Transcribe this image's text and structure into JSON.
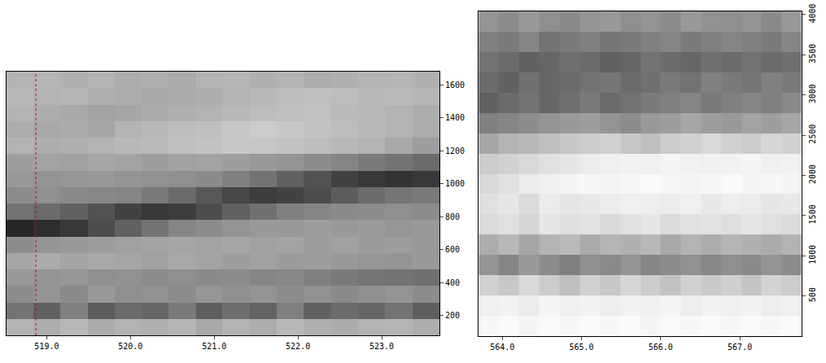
{
  "chart_data": [
    {
      "type": "heatmap",
      "x": [
        518.68,
        519.0,
        519.33,
        519.65,
        519.97,
        520.29,
        520.62,
        520.94,
        521.26,
        521.59,
        521.91,
        522.23,
        522.56,
        522.88,
        523.2,
        523.53
      ],
      "y": [
        130,
        230,
        330,
        430,
        530,
        630,
        730,
        830,
        930,
        1030,
        1130,
        1230,
        1330,
        1430,
        1530,
        1630
      ],
      "z": [
        [
          30,
          32,
          28,
          33,
          30,
          31,
          29,
          34,
          30,
          32,
          28,
          31,
          33,
          30,
          29,
          32
        ],
        [
          55,
          62,
          50,
          64,
          58,
          60,
          52,
          63,
          57,
          61,
          50,
          62,
          58,
          60,
          55,
          63
        ],
        [
          45,
          42,
          46,
          40,
          44,
          43,
          45,
          41,
          44,
          42,
          45,
          43,
          46,
          44,
          42,
          45
        ],
        [
          40,
          42,
          41,
          44,
          43,
          45,
          44,
          46,
          45,
          48,
          47,
          50,
          52,
          54,
          55,
          56
        ],
        [
          35,
          33,
          36,
          34,
          35,
          37,
          34,
          36,
          38,
          37,
          39,
          38,
          40,
          41,
          42,
          40
        ],
        [
          45,
          42,
          40,
          38,
          37,
          36,
          35,
          36,
          35,
          37,
          36,
          38,
          37,
          39,
          38,
          40
        ],
        [
          85,
          82,
          78,
          70,
          62,
          55,
          48,
          45,
          42,
          40,
          40,
          38,
          40,
          39,
          41,
          40
        ],
        [
          55,
          58,
          62,
          68,
          74,
          78,
          76,
          70,
          62,
          56,
          50,
          48,
          46,
          45,
          44,
          45
        ],
        [
          45,
          44,
          46,
          47,
          48,
          52,
          58,
          66,
          72,
          76,
          74,
          70,
          64,
          58,
          54,
          52
        ],
        [
          40,
          42,
          41,
          40,
          42,
          43,
          44,
          46,
          50,
          55,
          62,
          68,
          74,
          78,
          80,
          78
        ],
        [
          38,
          36,
          37,
          35,
          36,
          38,
          37,
          36,
          38,
          40,
          42,
          45,
          48,
          52,
          55,
          58
        ],
        [
          30,
          32,
          31,
          30,
          28,
          27,
          25,
          24,
          22,
          22,
          24,
          26,
          28,
          30,
          34,
          38
        ],
        [
          32,
          34,
          33,
          35,
          30,
          28,
          26,
          25,
          22,
          20,
          22,
          24,
          26,
          28,
          30,
          32
        ],
        [
          30,
          32,
          34,
          36,
          35,
          33,
          31,
          30,
          28,
          26,
          25,
          24,
          27,
          28,
          30,
          32
        ],
        [
          28,
          30,
          29,
          31,
          32,
          34,
          33,
          32,
          30,
          28,
          26,
          25,
          26,
          28,
          27,
          29
        ],
        [
          30,
          29,
          31,
          30,
          32,
          31,
          33,
          30,
          29,
          31,
          30,
          32,
          31,
          30,
          29,
          31
        ]
      ],
      "zlim": [
        0,
        100
      ],
      "xlim": [
        518.52,
        523.69
      ],
      "ylim": [
        80,
        1680
      ],
      "xticks": [
        {
          "value": 519,
          "label": "519.0"
        },
        {
          "value": 520,
          "label": "520.0"
        },
        {
          "value": 521,
          "label": "521.0"
        },
        {
          "value": 522,
          "label": "522.0"
        },
        {
          "value": 523,
          "label": "523.0"
        }
      ],
      "yticks": [
        200,
        400,
        600,
        800,
        1000,
        1200,
        1400,
        1600
      ],
      "vline": {
        "x": 518.87,
        "color": "#cc0000",
        "line_style": "dotted"
      },
      "grid": false
    },
    {
      "type": "heatmap",
      "x": [
        563.83,
        564.08,
        564.34,
        564.6,
        564.85,
        565.11,
        565.36,
        565.62,
        565.87,
        566.13,
        566.38,
        566.64,
        566.89,
        567.15,
        567.4,
        567.65
      ],
      "y": [
        126,
        379,
        631,
        884,
        1136,
        1389,
        1641,
        1894,
        2146,
        2399,
        2651,
        2904,
        3156,
        3409,
        3661,
        3914
      ],
      "z": [
        [
          3,
          2,
          4,
          2,
          3,
          2,
          3,
          2,
          4,
          2,
          3,
          2,
          3,
          2,
          3,
          2
        ],
        [
          6,
          5,
          8,
          4,
          6,
          5,
          7,
          5,
          6,
          4,
          7,
          5,
          6,
          5,
          7,
          6
        ],
        [
          18,
          22,
          15,
          20,
          25,
          18,
          22,
          16,
          20,
          24,
          18,
          21,
          19,
          23,
          17,
          20
        ],
        [
          42,
          48,
          40,
          45,
          50,
          44,
          46,
          42,
          48,
          45,
          43,
          47,
          44,
          46,
          42,
          45
        ],
        [
          32,
          28,
          35,
          30,
          27,
          33,
          29,
          31,
          28,
          34,
          30,
          32,
          29,
          31,
          33,
          30
        ],
        [
          14,
          12,
          16,
          10,
          13,
          11,
          15,
          12,
          10,
          14,
          12,
          11,
          13,
          10,
          12,
          14
        ],
        [
          12,
          10,
          14,
          8,
          10,
          9,
          8,
          6,
          7,
          8,
          6,
          9,
          7,
          8,
          10,
          9
        ],
        [
          15,
          12,
          8,
          6,
          4,
          3,
          4,
          3,
          2,
          3,
          4,
          3,
          2,
          4,
          3,
          4
        ],
        [
          20,
          18,
          15,
          12,
          10,
          8,
          6,
          5,
          6,
          4,
          5,
          6,
          5,
          4,
          6,
          5
        ],
        [
          35,
          30,
          28,
          25,
          22,
          20,
          18,
          22,
          25,
          20,
          18,
          15,
          18,
          20,
          16,
          18
        ],
        [
          50,
          48,
          45,
          42,
          40,
          38,
          42,
          45,
          40,
          38,
          35,
          38,
          40,
          36,
          38,
          35
        ],
        [
          62,
          58,
          55,
          60,
          56,
          52,
          58,
          55,
          52,
          50,
          48,
          52,
          50,
          48,
          50,
          46
        ],
        [
          58,
          62,
          56,
          60,
          58,
          55,
          54,
          58,
          56,
          52,
          55,
          50,
          52,
          54,
          50,
          52
        ],
        [
          55,
          58,
          62,
          60,
          56,
          58,
          62,
          60,
          55,
          58,
          60,
          56,
          58,
          55,
          58,
          56
        ],
        [
          50,
          52,
          48,
          55,
          52,
          50,
          54,
          52,
          50,
          48,
          52,
          50,
          48,
          50,
          52,
          48
        ],
        [
          42,
          45,
          40,
          44,
          46,
          42,
          40,
          44,
          42,
          45,
          40,
          43,
          44,
          42,
          46,
          40
        ]
      ],
      "zlim": [
        0,
        100
      ],
      "xlim": [
        563.7,
        567.78
      ],
      "ylim": [
        0,
        4040
      ],
      "xticks": [
        {
          "value": 564,
          "label": "564.0"
        },
        {
          "value": 565,
          "label": "565.0"
        },
        {
          "value": 566,
          "label": "566.0"
        },
        {
          "value": 567,
          "label": "567.0"
        }
      ],
      "yticks": [
        500,
        1000,
        1500,
        2000,
        2500,
        3000,
        3500,
        4000
      ],
      "grid": false
    }
  ]
}
